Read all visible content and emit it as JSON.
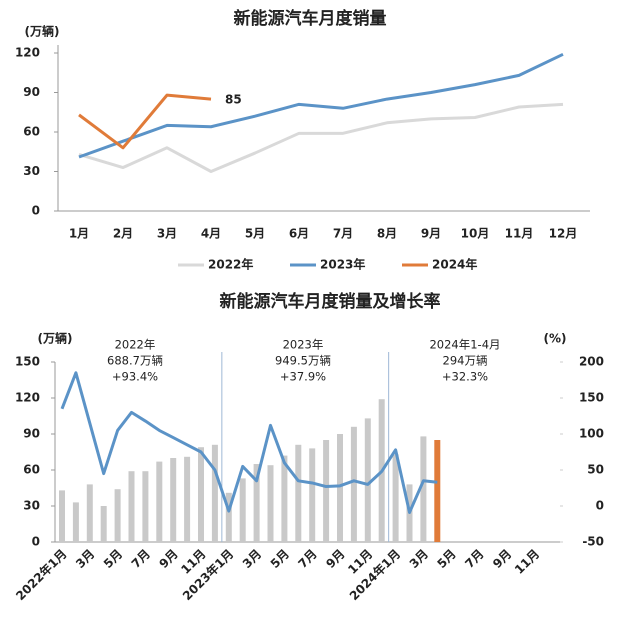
{
  "chart_data": [
    {
      "type": "line",
      "title": "新能源汽车月度销量",
      "y_unit": "(万辆)",
      "categories": [
        "1月",
        "2月",
        "3月",
        "4月",
        "5月",
        "6月",
        "7月",
        "8月",
        "9月",
        "10月",
        "11月",
        "12月"
      ],
      "ylim": [
        0,
        120
      ],
      "yticks": [
        0,
        30,
        60,
        90,
        120
      ],
      "legend": "bottom",
      "label_last": true,
      "series": [
        {
          "name": "2022年",
          "color": "#d9d9d9",
          "values": [
            43,
            33,
            48,
            30,
            44,
            59,
            59,
            67,
            70,
            71,
            79,
            81
          ]
        },
        {
          "name": "2023年",
          "color": "#5b93c7",
          "values": [
            41,
            53,
            65,
            64,
            72,
            81,
            78,
            85,
            90,
            96,
            103,
            119
          ]
        },
        {
          "name": "2024年",
          "color": "#e07b39",
          "values": [
            73,
            48,
            88,
            85,
            null,
            null,
            null,
            null,
            null,
            null,
            null,
            null
          ],
          "label_last": true
        }
      ]
    },
    {
      "type": "bar",
      "title": "新能源汽车月度销量及增长率",
      "y_unit": "(万辆)",
      "y2_unit": "(%)",
      "categories": [
        "2022年1月",
        null,
        "3月",
        null,
        "5月",
        null,
        "7月",
        null,
        "9月",
        null,
        "11月",
        null,
        "2023年1月",
        null,
        "3月",
        null,
        "5月",
        null,
        "7月",
        null,
        "9月",
        null,
        "11月",
        null,
        "2024年1月",
        null,
        "3月",
        null,
        "5月",
        null,
        "7月",
        null,
        "9月",
        null,
        "11月",
        null
      ],
      "ylim": [
        0,
        150
      ],
      "yticks": [
        0,
        30,
        60,
        90,
        120,
        150
      ],
      "y2lim": [
        -50,
        200
      ],
      "y2ticks": [
        -50,
        0,
        50,
        100,
        150,
        200
      ],
      "annotations": [
        [
          "2022年",
          "688.7万辆",
          "+93.4%"
        ],
        [
          "2023年",
          "949.5万辆",
          "+37.9%"
        ],
        [
          "2024年1-4月",
          "294万辆",
          "+32.3%"
        ]
      ],
      "series": [
        {
          "type": "bar",
          "color": "#c9c9c9",
          "values": [
            43,
            33,
            48,
            30,
            44,
            59,
            59,
            67,
            70,
            71,
            79,
            81,
            41,
            53,
            65,
            64,
            72,
            81,
            78,
            85,
            90,
            96,
            103,
            119,
            73,
            48,
            88,
            null,
            null,
            null,
            null,
            null,
            null,
            null,
            null,
            null
          ]
        },
        {
          "type": "bar",
          "color": "#e07b39",
          "values": [
            null,
            null,
            null,
            null,
            null,
            null,
            null,
            null,
            null,
            null,
            null,
            null,
            null,
            null,
            null,
            null,
            null,
            null,
            null,
            null,
            null,
            null,
            null,
            null,
            null,
            null,
            null,
            85,
            null,
            null,
            null,
            null,
            null,
            null,
            null,
            null
          ]
        },
        {
          "type": "line",
          "axis": "y2",
          "color": "#5b93c7",
          "values": [
            135,
            185,
            115,
            45,
            105,
            130,
            118,
            105,
            95,
            85,
            75,
            50,
            -7,
            55,
            35,
            112,
            60,
            35,
            32,
            27,
            28,
            35,
            30,
            48,
            78,
            -9,
            35,
            33,
            null,
            null,
            null,
            null,
            null,
            null,
            null,
            null
          ]
        }
      ]
    }
  ]
}
